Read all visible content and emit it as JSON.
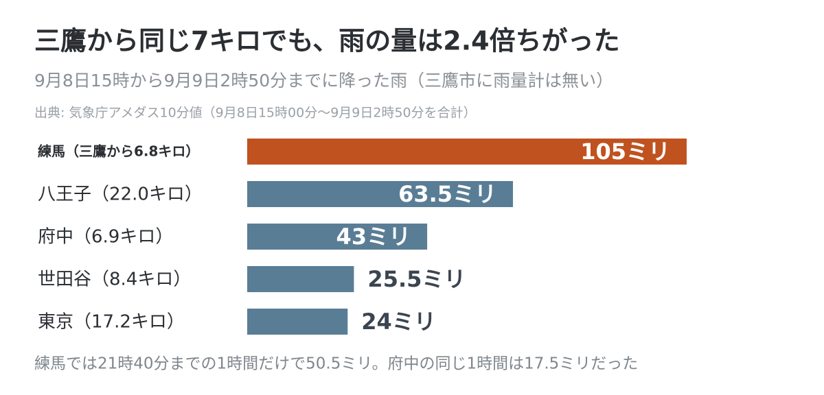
{
  "chart_data": {
    "type": "bar",
    "orientation": "horizontal",
    "title": "三鷹から同じ7キロでも、雨の量は2.4倍ちがった",
    "subtitle": "9月8日15時から9月9日2時50分までに降った雨（三鷹市に雨量計は無い）",
    "source": "出典: 気象庁アメダス10分値（9月8日15時00分～9月9日2時50分を合計）",
    "note": "練馬では21時40分までの1時間だけで50.5ミリ。府中の同じ1時間は17.5ミリだった",
    "categories": [
      "練馬（三鷹から6.8キロ）",
      "八王子（22.0キロ）",
      "府中（6.9キロ）",
      "世田谷（8.4キロ）",
      "東京（17.2キロ）"
    ],
    "values": [
      105,
      63.5,
      43,
      25.5,
      24
    ],
    "value_labels": [
      "105ミリ",
      "63.5ミリ",
      "43ミリ",
      "25.5ミリ",
      "24ミリ"
    ],
    "colors": [
      "#c0521f",
      "#5a7d96",
      "#5a7d96",
      "#5a7d96",
      "#5a7d96"
    ]
  }
}
